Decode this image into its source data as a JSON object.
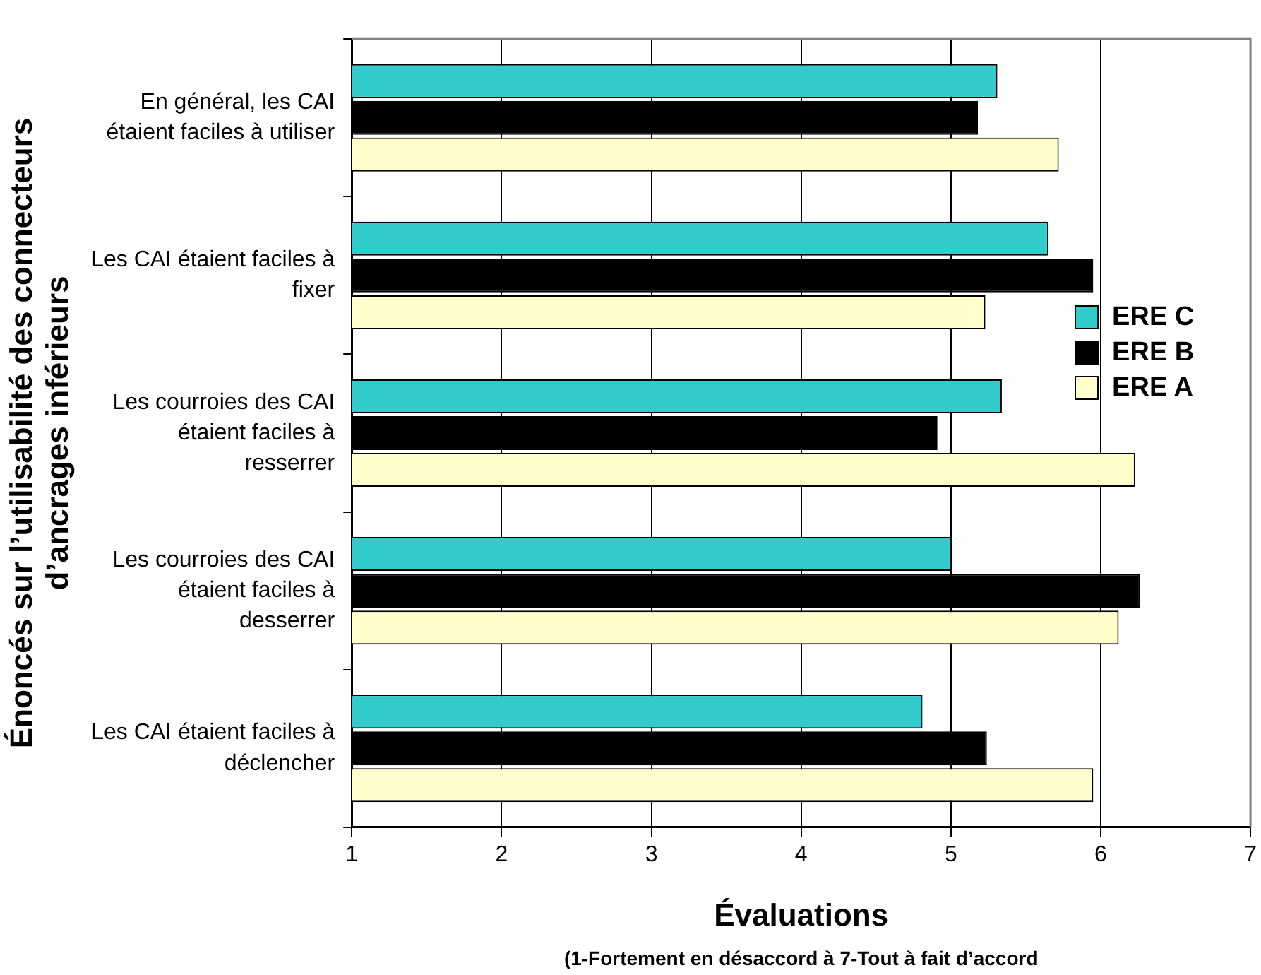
{
  "chart_data": {
    "type": "bar",
    "orientation": "horizontal",
    "categories": [
      "En général, les CAI étaient faciles à utiliser",
      "Les CAI étaient faciles à fixer",
      "Les courroies des CAI étaient faciles à resserrer",
      "Les courroies des CAI étaient faciles à desserrer",
      "Les CAI étaient faciles à déclencher"
    ],
    "series": [
      {
        "name": "ERE C",
        "color": "#33cccc",
        "values": [
          5.31,
          5.65,
          5.34,
          5.0,
          4.81
        ]
      },
      {
        "name": "ERE B",
        "color": "#000000",
        "values": [
          5.18,
          5.95,
          4.91,
          6.26,
          5.24
        ]
      },
      {
        "name": "ERE A",
        "color": "#ffffcc",
        "values": [
          5.72,
          5.23,
          6.23,
          6.12,
          5.95
        ]
      }
    ],
    "xlim": [
      1,
      7
    ],
    "xticks": [
      1,
      2,
      3,
      4,
      5,
      6,
      7
    ],
    "xlabel": "Évaluations",
    "ylabel": "Énoncés sur l’utilisabilité des connecteurs d’ancrages inférieurs",
    "annotations": [
      "(1-Fortement en désaccord à 7-Tout à fait d’accord"
    ],
    "grid": "x",
    "legend": "right"
  }
}
